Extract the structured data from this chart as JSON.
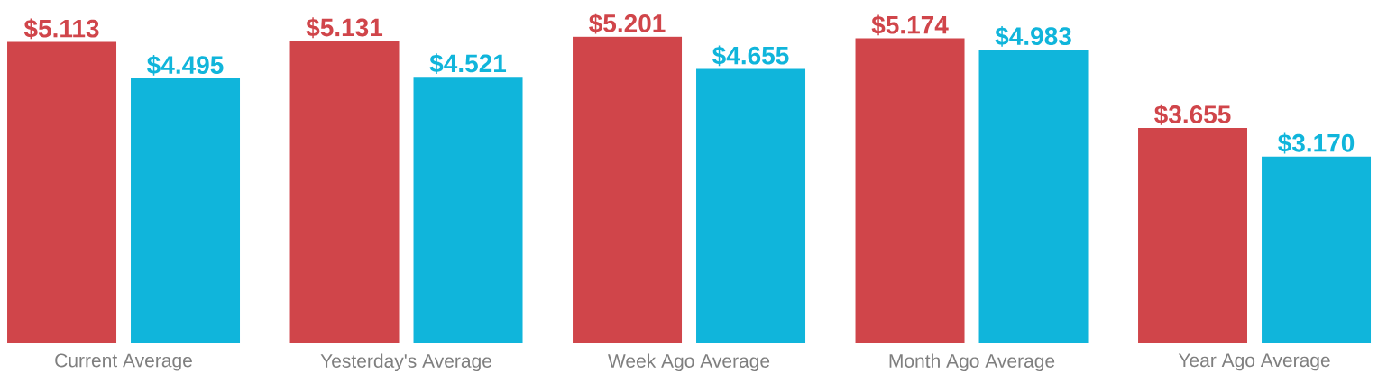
{
  "chart_data": {
    "type": "bar",
    "categories": [
      "Current Average",
      "Yesterday's Average",
      "Week Ago Average",
      "Month Ago Average",
      "Year Ago Average"
    ],
    "series": [
      {
        "color": "#d0454a",
        "values": [
          5.113,
          5.131,
          5.201,
          5.174,
          3.655
        ],
        "value_labels": [
          "$5.113",
          "$5.131",
          "$5.201",
          "$5.174",
          "$3.655"
        ]
      },
      {
        "color": "#10b5db",
        "values": [
          4.495,
          4.521,
          4.655,
          4.983,
          3.17
        ],
        "value_labels": [
          "$4.495",
          "$4.521",
          "$4.655",
          "$4.983",
          "$3.170"
        ]
      }
    ],
    "grid": false,
    "legend": false
  }
}
